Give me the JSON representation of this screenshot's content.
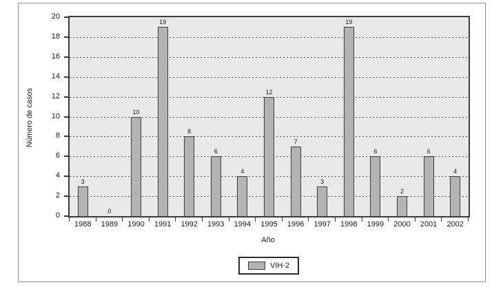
{
  "figure": {
    "y_axis_title": "Número de casos",
    "x_axis_title": "Año",
    "legend_label": "VIH-2"
  },
  "colors": {
    "bar_fill": "#b3b3b3",
    "bar_border": "#3a3a3a",
    "plot_background": "#e8e8e8",
    "gridline": "#555555",
    "figure_border": "#8f8f8f",
    "text": "#1a1a1a"
  },
  "chart_data": {
    "type": "bar",
    "title": "",
    "categories": [
      "1988",
      "1989",
      "1990",
      "1991",
      "1992",
      "1993",
      "1994",
      "1995",
      "1996",
      "1997",
      "1998",
      "1999",
      "2000",
      "2001",
      "2002"
    ],
    "values": [
      3,
      0,
      10,
      19,
      8,
      6,
      4,
      12,
      7,
      3,
      19,
      6,
      2,
      6,
      4
    ],
    "series_name": "VIH-2",
    "xlabel": "Año",
    "ylabel": "Número de casos",
    "ylim": [
      0,
      20
    ],
    "ytick_step": 2,
    "grid": true,
    "grid_style": "dotted",
    "data_labels": true,
    "legend_position": "bottom-center"
  }
}
